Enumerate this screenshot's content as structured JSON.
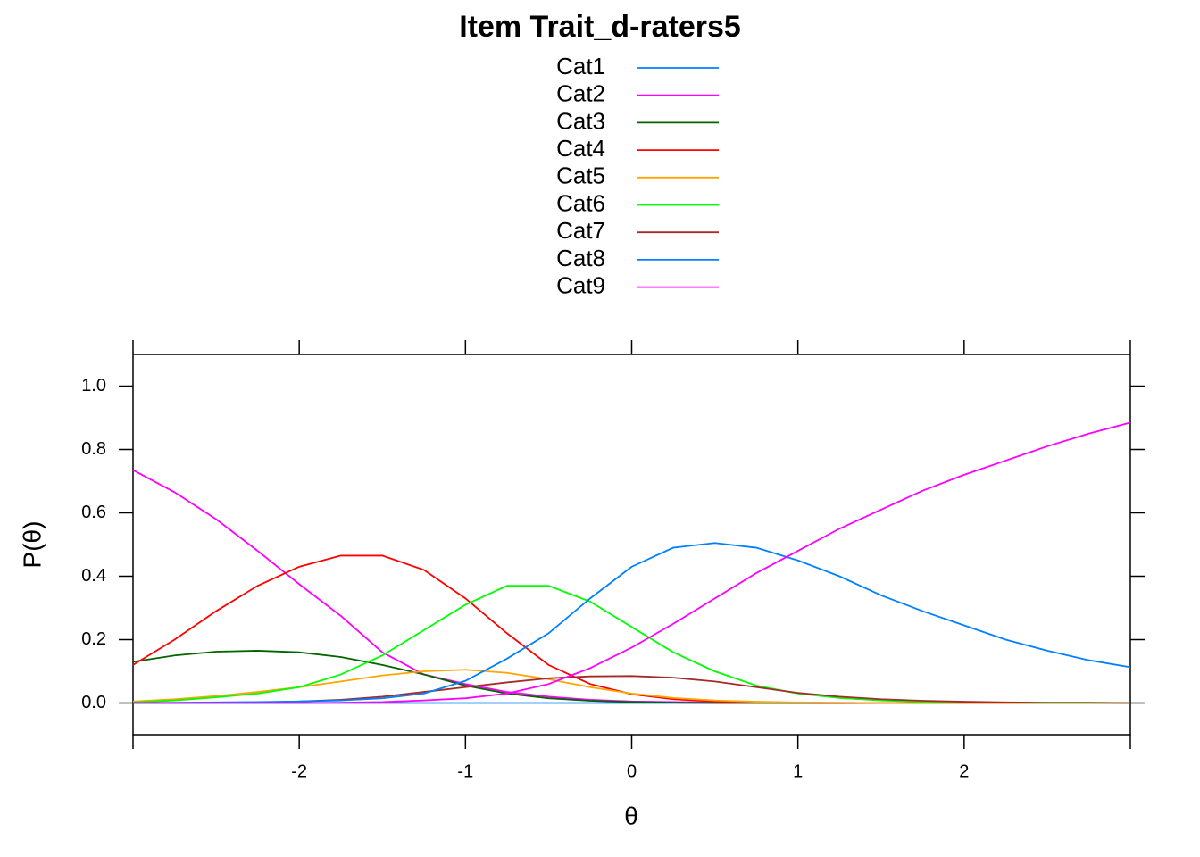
{
  "chart_data": {
    "type": "line",
    "title": "Item Trait_d-raters5",
    "xlabel": "θ",
    "ylabel": "P(θ)",
    "x": [
      -3,
      -2.75,
      -2.5,
      -2.25,
      -2,
      -1.75,
      -1.5,
      -1.25,
      -1,
      -0.75,
      -0.5,
      -0.25,
      0,
      0.25,
      0.5,
      0.75,
      1,
      1.25,
      1.5,
      1.75,
      2,
      2.25,
      2.5,
      2.75,
      3
    ],
    "series": [
      {
        "name": "Cat1",
        "color": "#0080ff",
        "values": [
          0,
          0,
          0,
          0,
          0,
          0,
          0,
          0,
          0,
          0,
          0,
          0,
          0,
          0,
          0,
          0,
          0,
          0,
          0,
          0,
          0,
          0,
          0,
          0,
          0
        ]
      },
      {
        "name": "Cat2",
        "color": "#ff00ff",
        "values": [
          0.735,
          0.665,
          0.58,
          0.48,
          0.375,
          0.275,
          0.16,
          0.09,
          0.06,
          0.035,
          0.02,
          0.01,
          0.005,
          0.003,
          0.002,
          0.001,
          0,
          0,
          0,
          0,
          0,
          0,
          0,
          0,
          0
        ]
      },
      {
        "name": "Cat3",
        "color": "#006400",
        "values": [
          0.13,
          0.15,
          0.162,
          0.165,
          0.16,
          0.145,
          0.12,
          0.09,
          0.055,
          0.03,
          0.015,
          0.007,
          0.003,
          0.001,
          0,
          0,
          0,
          0,
          0,
          0,
          0,
          0,
          0,
          0,
          0
        ]
      },
      {
        "name": "Cat4",
        "color": "#ff0000",
        "values": [
          0.12,
          0.2,
          0.29,
          0.37,
          0.43,
          0.465,
          0.465,
          0.42,
          0.33,
          0.22,
          0.12,
          0.06,
          0.028,
          0.012,
          0.005,
          0.002,
          0.001,
          0,
          0,
          0,
          0,
          0,
          0,
          0,
          0
        ]
      },
      {
        "name": "Cat5",
        "color": "#ffa500",
        "values": [
          0.005,
          0.012,
          0.022,
          0.035,
          0.05,
          0.068,
          0.087,
          0.1,
          0.105,
          0.095,
          0.075,
          0.05,
          0.03,
          0.016,
          0.008,
          0.004,
          0.002,
          0.001,
          0,
          0,
          0,
          0,
          0,
          0,
          0
        ]
      },
      {
        "name": "Cat6",
        "color": "#00ff00",
        "values": [
          0.002,
          0.008,
          0.018,
          0.03,
          0.05,
          0.09,
          0.15,
          0.23,
          0.31,
          0.37,
          0.37,
          0.32,
          0.24,
          0.16,
          0.1,
          0.055,
          0.03,
          0.016,
          0.008,
          0.004,
          0.002,
          0.001,
          0,
          0,
          0
        ]
      },
      {
        "name": "Cat7",
        "color": "#a52a2a",
        "values": [
          0,
          0,
          0.001,
          0.002,
          0.005,
          0.01,
          0.02,
          0.035,
          0.05,
          0.065,
          0.078,
          0.084,
          0.085,
          0.08,
          0.068,
          0.05,
          0.032,
          0.02,
          0.012,
          0.007,
          0.004,
          0.002,
          0.001,
          0.001,
          0
        ]
      },
      {
        "name": "Cat8",
        "color": "#0080ff",
        "values": [
          0,
          0.001,
          0.002,
          0.003,
          0.005,
          0.008,
          0.015,
          0.03,
          0.07,
          0.14,
          0.22,
          0.33,
          0.43,
          0.49,
          0.505,
          0.49,
          0.45,
          0.4,
          0.34,
          0.29,
          0.245,
          0.2,
          0.165,
          0.135,
          0.113
        ]
      },
      {
        "name": "Cat9",
        "color": "#ff00ff",
        "values": [
          0,
          0,
          0,
          0,
          0,
          0.001,
          0.003,
          0.008,
          0.015,
          0.03,
          0.06,
          0.11,
          0.175,
          0.25,
          0.33,
          0.41,
          0.48,
          0.55,
          0.61,
          0.67,
          0.72,
          0.765,
          0.81,
          0.85,
          0.885
        ]
      }
    ],
    "xlim": [
      -3,
      3
    ],
    "ylim": [
      -0.1,
      1.1
    ],
    "xticks": [
      -2,
      -1,
      0,
      1,
      2
    ],
    "yticks": [
      {
        "value": 0,
        "label": "0.0"
      },
      0.2,
      0.4,
      0.6,
      0.8,
      {
        "value": 1,
        "label": "1.0"
      }
    ]
  }
}
